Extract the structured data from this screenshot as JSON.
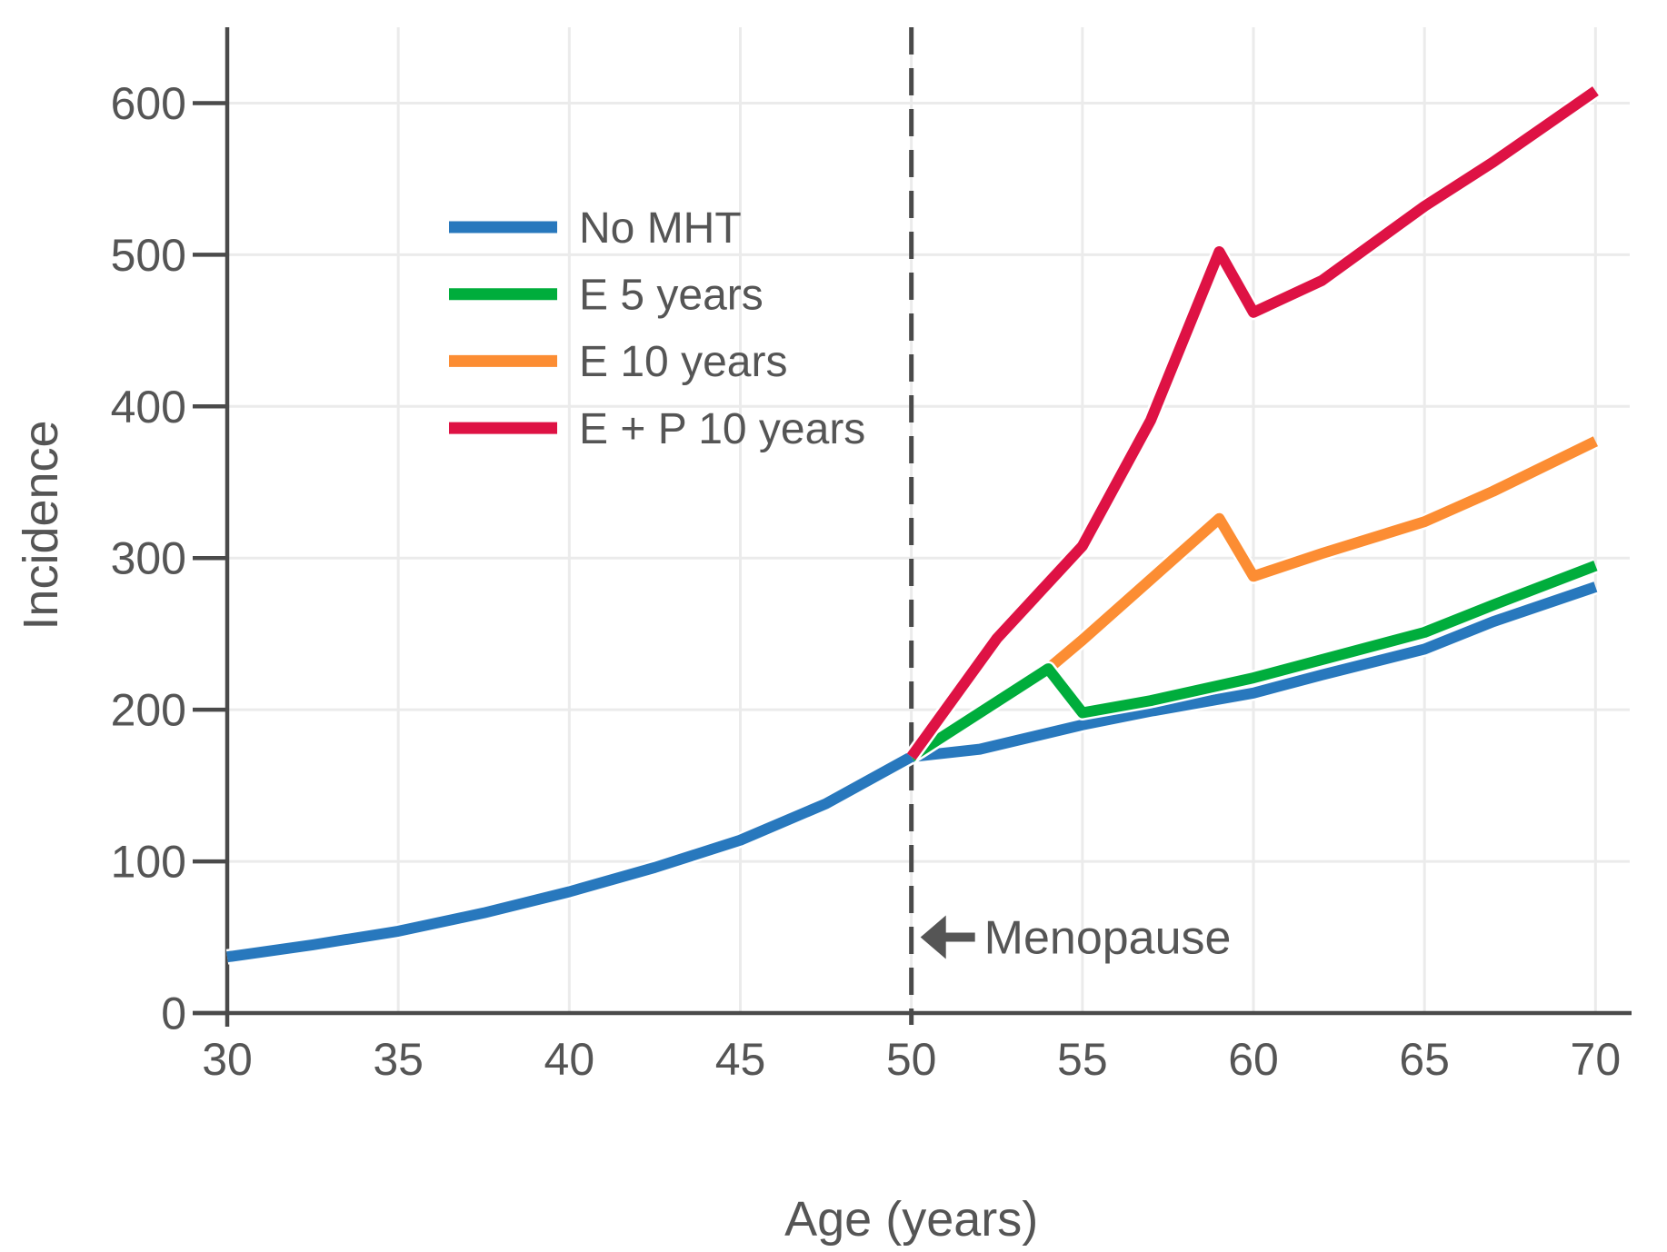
{
  "figure": {
    "background": "#ffffff"
  },
  "colors": {
    "axis": "#4a4a4a",
    "grid": "#ebebeb",
    "text": "#555555",
    "annotation": "#555555",
    "no_mht": "#2878bd",
    "e5": "#00ad3c",
    "e10": "#fc8d33",
    "ep10": "#de1244"
  },
  "chart_data": {
    "type": "line",
    "title": "",
    "xlabel": "Age (years)",
    "ylabel": "Incidence",
    "xlim": [
      30,
      71
    ],
    "ylim": [
      0,
      650
    ],
    "xticks": [
      30,
      35,
      40,
      45,
      50,
      55,
      60,
      65,
      70
    ],
    "yticks": [
      0,
      100,
      200,
      300,
      400,
      500,
      600
    ],
    "grid": true,
    "legend": {
      "position": "upper-left-inside"
    },
    "annotation": {
      "type": "vline-dashed",
      "x": 50,
      "label": "Menopause",
      "arrow_direction": "left",
      "label_y": 50
    },
    "series": [
      {
        "name": "No MHT",
        "color": "#2878bd",
        "z": 1,
        "x": [
          30,
          32.5,
          35,
          37.5,
          40,
          42.5,
          45,
          47.5,
          50,
          52,
          55,
          57,
          60,
          62,
          65,
          67,
          70
        ],
        "y": [
          37,
          45,
          54,
          66,
          80,
          96,
          114,
          138,
          169,
          174,
          190,
          199,
          211,
          223,
          240,
          258,
          281
        ]
      },
      {
        "name": "E 5 years",
        "color": "#00ad3c",
        "z": 3,
        "x": [
          50,
          54,
          55,
          57,
          60,
          62,
          65,
          67,
          70
        ],
        "y": [
          169,
          227,
          198,
          206,
          221,
          233,
          251,
          269,
          295
        ]
      },
      {
        "name": "E 10 years",
        "color": "#fc8d33",
        "z": 2,
        "x": [
          50,
          54,
          55,
          57,
          59,
          60,
          62,
          65,
          67,
          70
        ],
        "y": [
          169,
          227,
          246,
          286,
          326,
          288,
          303,
          324,
          344,
          377
        ]
      },
      {
        "name": "E + P 10 years",
        "color": "#de1244",
        "z": 4,
        "x": [
          50,
          52.5,
          55,
          57,
          59,
          60,
          62,
          65,
          67,
          70
        ],
        "y": [
          169,
          247,
          308,
          391,
          502,
          462,
          483,
          532,
          561,
          608
        ]
      }
    ]
  }
}
